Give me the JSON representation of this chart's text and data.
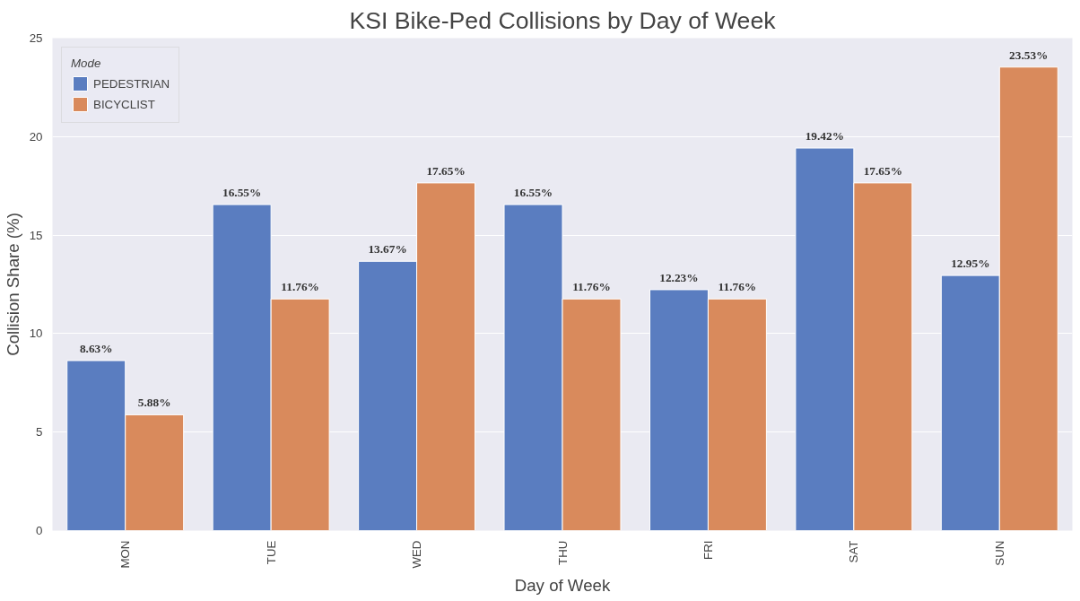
{
  "chart_data": {
    "type": "bar",
    "title": "KSI Bike-Ped Collisions by Day of Week",
    "xlabel": "Day of Week",
    "ylabel": "Collision Share (%)",
    "legend_title": "Mode",
    "categories": [
      "MON",
      "TUE",
      "WED",
      "THU",
      "FRI",
      "SAT",
      "SUN"
    ],
    "series": [
      {
        "name": "PEDESTRIAN",
        "color": "#5a7dc0",
        "values": [
          8.63,
          16.55,
          13.67,
          16.55,
          12.23,
          19.42,
          12.95
        ]
      },
      {
        "name": "BICYCLIST",
        "color": "#d98a5c",
        "values": [
          5.88,
          11.76,
          17.65,
          11.76,
          11.76,
          17.65,
          23.53
        ]
      }
    ],
    "value_labels": [
      [
        "8.63%",
        "16.55%",
        "13.67%",
        "16.55%",
        "12.23%",
        "19.42%",
        "12.95%"
      ],
      [
        "5.88%",
        "11.76%",
        "17.65%",
        "11.76%",
        "11.76%",
        "17.65%",
        "23.53%"
      ]
    ],
    "ylim": [
      0,
      25
    ],
    "yticks": [
      0,
      5,
      10,
      15,
      20,
      25
    ],
    "grid": "y",
    "legend": "top left"
  }
}
